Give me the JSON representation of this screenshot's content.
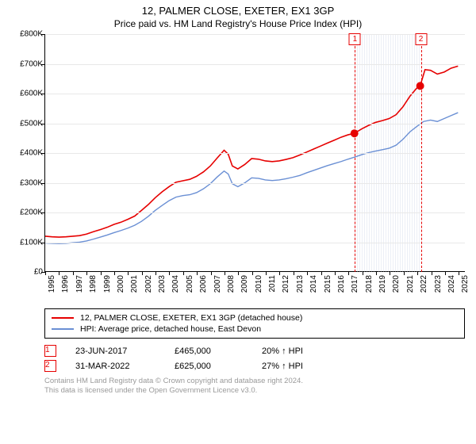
{
  "title": "12, PALMER CLOSE, EXETER, EX1 3GP",
  "subtitle": "Price paid vs. HM Land Registry's House Price Index (HPI)",
  "chart": {
    "type": "line",
    "background_color": "#ffffff",
    "grid_color": "#e8e8e8",
    "axis_color": "#000000",
    "tick_fontsize": 10,
    "x_range": [
      1995,
      2025.5
    ],
    "y_range": [
      0,
      800000
    ],
    "y_ticks": [
      0,
      100000,
      200000,
      300000,
      400000,
      500000,
      600000,
      700000,
      800000
    ],
    "y_tick_labels": [
      "£0",
      "£100K",
      "£200K",
      "£300K",
      "£400K",
      "£500K",
      "£600K",
      "£700K",
      "£800K"
    ],
    "x_ticks": [
      1995,
      1996,
      1997,
      1998,
      1999,
      2000,
      2001,
      2002,
      2003,
      2004,
      2005,
      2006,
      2007,
      2008,
      2009,
      2010,
      2011,
      2012,
      2013,
      2014,
      2015,
      2016,
      2017,
      2018,
      2019,
      2020,
      2021,
      2022,
      2023,
      2024,
      2025
    ],
    "hatched_band": {
      "x_start": 2017.47,
      "x_end": 2022.25
    },
    "series": [
      {
        "name": "12, PALMER CLOSE, EXETER, EX1 3GP (detached house)",
        "color": "#e60000",
        "width": 1.6,
        "points": [
          [
            1995,
            118000
          ],
          [
            1995.5,
            116000
          ],
          [
            1996,
            115000
          ],
          [
            1996.5,
            116000
          ],
          [
            1997,
            118000
          ],
          [
            1997.5,
            120000
          ],
          [
            1998,
            125000
          ],
          [
            1998.5,
            133000
          ],
          [
            1999,
            140000
          ],
          [
            1999.5,
            148000
          ],
          [
            2000,
            158000
          ],
          [
            2000.5,
            165000
          ],
          [
            2001,
            175000
          ],
          [
            2001.5,
            186000
          ],
          [
            2002,
            205000
          ],
          [
            2002.5,
            225000
          ],
          [
            2003,
            248000
          ],
          [
            2003.5,
            268000
          ],
          [
            2004,
            285000
          ],
          [
            2004.5,
            300000
          ],
          [
            2005,
            305000
          ],
          [
            2005.5,
            310000
          ],
          [
            2006,
            320000
          ],
          [
            2006.5,
            335000
          ],
          [
            2007,
            355000
          ],
          [
            2007.5,
            382000
          ],
          [
            2008,
            408000
          ],
          [
            2008.3,
            395000
          ],
          [
            2008.6,
            355000
          ],
          [
            2009,
            345000
          ],
          [
            2009.5,
            360000
          ],
          [
            2010,
            380000
          ],
          [
            2010.5,
            378000
          ],
          [
            2011,
            372000
          ],
          [
            2011.5,
            370000
          ],
          [
            2012,
            372000
          ],
          [
            2012.5,
            377000
          ],
          [
            2013,
            383000
          ],
          [
            2013.5,
            392000
          ],
          [
            2014,
            402000
          ],
          [
            2014.5,
            412000
          ],
          [
            2015,
            422000
          ],
          [
            2015.5,
            432000
          ],
          [
            2016,
            442000
          ],
          [
            2016.5,
            452000
          ],
          [
            2017,
            460000
          ],
          [
            2017.47,
            465000
          ],
          [
            2018,
            480000
          ],
          [
            2018.5,
            492000
          ],
          [
            2019,
            502000
          ],
          [
            2019.5,
            508000
          ],
          [
            2020,
            515000
          ],
          [
            2020.5,
            528000
          ],
          [
            2021,
            555000
          ],
          [
            2021.5,
            590000
          ],
          [
            2022,
            618000
          ],
          [
            2022.25,
            625000
          ],
          [
            2022.6,
            680000
          ],
          [
            2023,
            678000
          ],
          [
            2023.5,
            665000
          ],
          [
            2024,
            672000
          ],
          [
            2024.5,
            685000
          ],
          [
            2025,
            692000
          ]
        ]
      },
      {
        "name": "HPI: Average price, detached house, East Devon",
        "color": "#6a8fd4",
        "width": 1.4,
        "points": [
          [
            1995,
            95000
          ],
          [
            1995.5,
            94000
          ],
          [
            1996,
            93000
          ],
          [
            1996.5,
            94000
          ],
          [
            1997,
            96000
          ],
          [
            1997.5,
            98000
          ],
          [
            1998,
            102000
          ],
          [
            1998.5,
            108000
          ],
          [
            1999,
            115000
          ],
          [
            1999.5,
            122000
          ],
          [
            2000,
            130000
          ],
          [
            2000.5,
            137000
          ],
          [
            2001,
            145000
          ],
          [
            2001.5,
            155000
          ],
          [
            2002,
            168000
          ],
          [
            2002.5,
            185000
          ],
          [
            2003,
            205000
          ],
          [
            2003.5,
            222000
          ],
          [
            2004,
            238000
          ],
          [
            2004.5,
            250000
          ],
          [
            2005,
            255000
          ],
          [
            2005.5,
            258000
          ],
          [
            2006,
            265000
          ],
          [
            2006.5,
            278000
          ],
          [
            2007,
            295000
          ],
          [
            2007.5,
            318000
          ],
          [
            2008,
            338000
          ],
          [
            2008.3,
            328000
          ],
          [
            2008.6,
            295000
          ],
          [
            2009,
            285000
          ],
          [
            2009.5,
            298000
          ],
          [
            2010,
            315000
          ],
          [
            2010.5,
            313000
          ],
          [
            2011,
            308000
          ],
          [
            2011.5,
            306000
          ],
          [
            2012,
            308000
          ],
          [
            2012.5,
            312000
          ],
          [
            2013,
            317000
          ],
          [
            2013.5,
            323000
          ],
          [
            2014,
            332000
          ],
          [
            2014.5,
            340000
          ],
          [
            2015,
            348000
          ],
          [
            2015.5,
            356000
          ],
          [
            2016,
            363000
          ],
          [
            2016.5,
            370000
          ],
          [
            2017,
            378000
          ],
          [
            2017.5,
            385000
          ],
          [
            2018,
            393000
          ],
          [
            2018.5,
            400000
          ],
          [
            2019,
            405000
          ],
          [
            2019.5,
            410000
          ],
          [
            2020,
            415000
          ],
          [
            2020.5,
            425000
          ],
          [
            2021,
            445000
          ],
          [
            2021.5,
            470000
          ],
          [
            2022,
            488000
          ],
          [
            2022.5,
            505000
          ],
          [
            2023,
            510000
          ],
          [
            2023.5,
            505000
          ],
          [
            2024,
            515000
          ],
          [
            2024.5,
            525000
          ],
          [
            2025,
            535000
          ]
        ]
      }
    ],
    "markers": [
      {
        "n": "1",
        "x": 2017.47,
        "y": 465000,
        "color": "#e60000",
        "size": 5
      },
      {
        "n": "2",
        "x": 2022.25,
        "y": 625000,
        "color": "#e60000",
        "size": 5
      }
    ]
  },
  "legend": {
    "rows": [
      {
        "label": "12, PALMER CLOSE, EXETER, EX1 3GP (detached house)",
        "color": "#e60000"
      },
      {
        "label": "HPI: Average price, detached house, East Devon",
        "color": "#6a8fd4"
      }
    ]
  },
  "sales": [
    {
      "n": "1",
      "date": "23-JUN-2017",
      "price": "£465,000",
      "hpi": "20% ↑ HPI"
    },
    {
      "n": "2",
      "date": "31-MAR-2022",
      "price": "£625,000",
      "hpi": "27% ↑ HPI"
    }
  ],
  "footer_line1": "Contains HM Land Registry data © Crown copyright and database right 2024.",
  "footer_line2": "This data is licensed under the Open Government Licence v3.0."
}
